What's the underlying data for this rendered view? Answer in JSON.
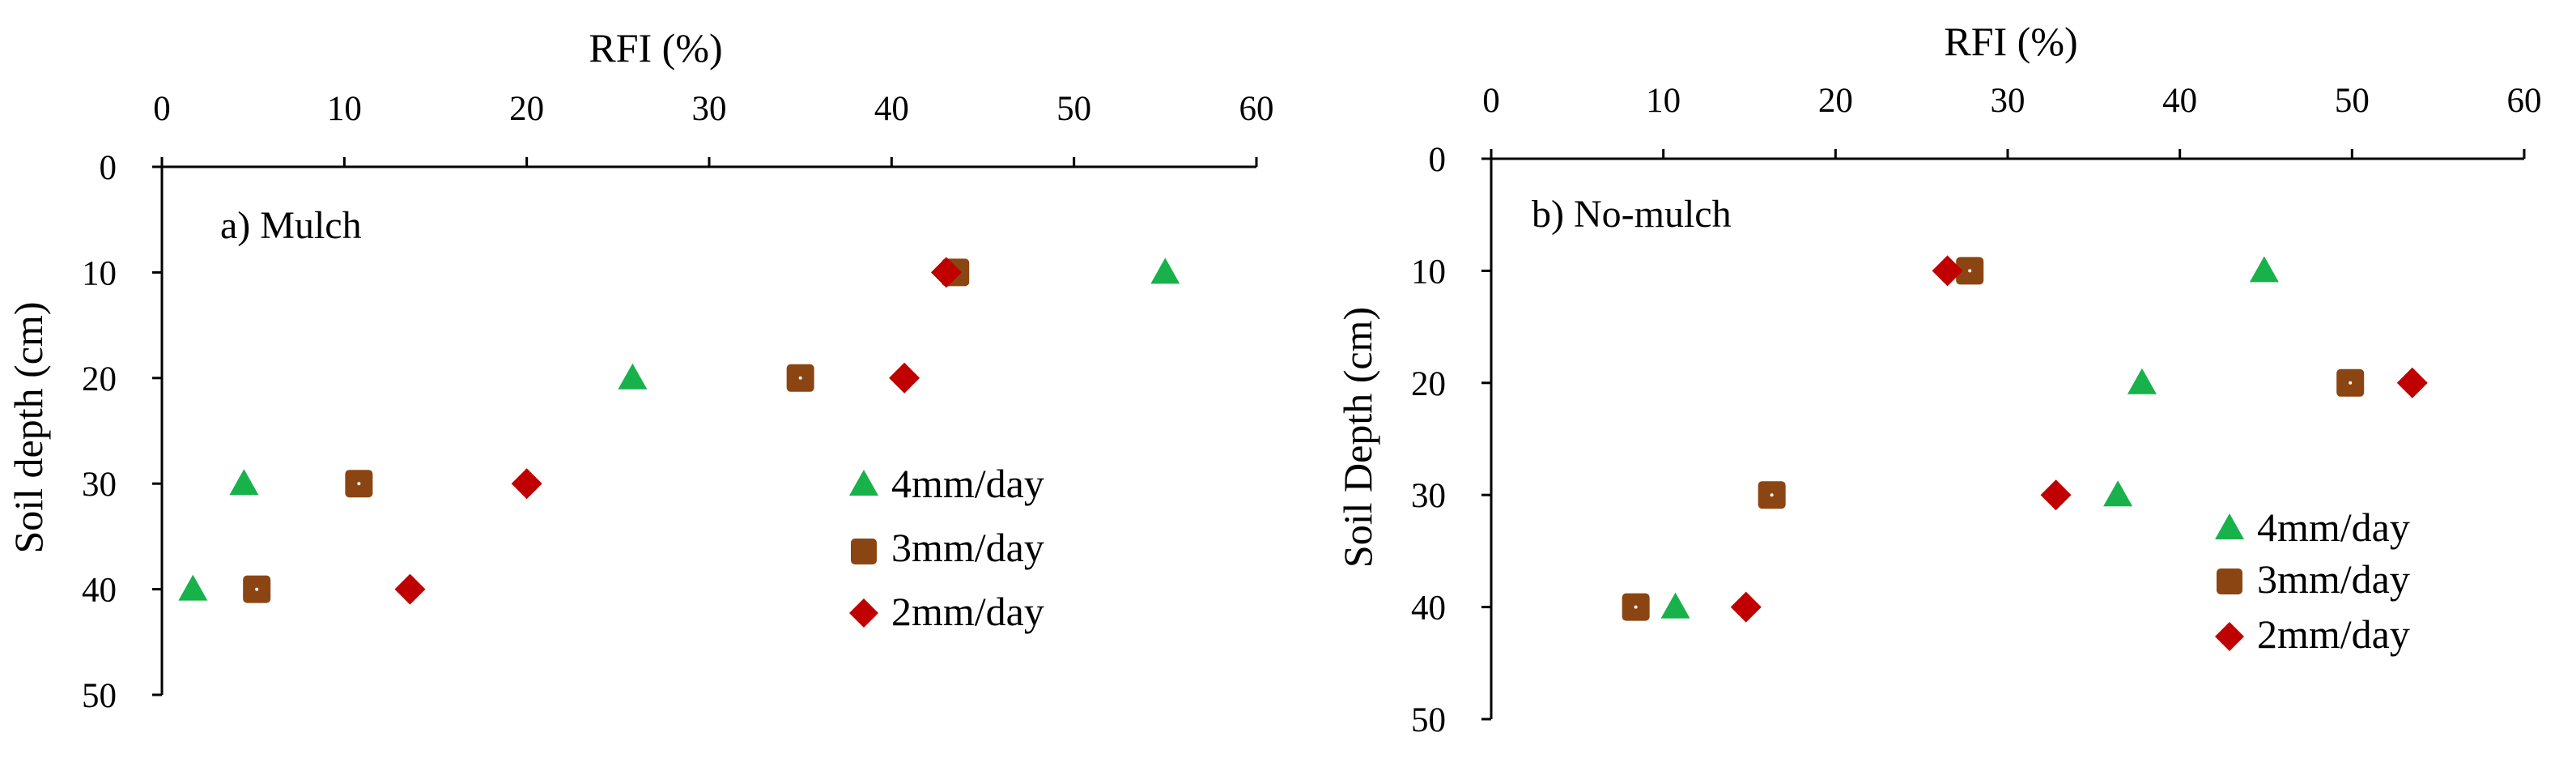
{
  "colors": {
    "4mm/day": "#17b24a",
    "3mm/day": "#8b4513",
    "2mm/day": "#c00000",
    "axis": "#000000"
  },
  "chart_data": [
    {
      "type": "scatter",
      "panel_label": "a) Mulch",
      "xlabel": "RFI (%)",
      "ylabel": "Soil depth (cm)",
      "xlim": [
        0,
        60
      ],
      "ylim": [
        0,
        50
      ],
      "x_axis_position": "top",
      "y_axis_inverted": true,
      "x_ticks": [
        "0",
        "10",
        "20",
        "30",
        "40",
        "50",
        "60"
      ],
      "y_ticks": [
        "0",
        "10",
        "20",
        "30",
        "40",
        "50"
      ],
      "grid": false,
      "legend_position": "bottom-right",
      "series": [
        {
          "name": "4mm/day",
          "marker": "triangle",
          "points": [
            [
              55,
              10
            ],
            [
              25.8,
              20
            ],
            [
              4.5,
              30
            ],
            [
              1.7,
              40
            ]
          ]
        },
        {
          "name": "3mm/day",
          "marker": "square",
          "points": [
            [
              43.5,
              10
            ],
            [
              35,
              20
            ],
            [
              10.8,
              30
            ],
            [
              5.2,
              40
            ]
          ]
        },
        {
          "name": "2mm/day",
          "marker": "diamond",
          "points": [
            [
              43,
              10
            ],
            [
              40.7,
              20
            ],
            [
              20,
              30
            ],
            [
              13.6,
              40
            ]
          ]
        }
      ]
    },
    {
      "type": "scatter",
      "panel_label": "b) No-mulch",
      "xlabel": "RFI (%)",
      "ylabel": "Soil Depth (cm)",
      "xlim": [
        0,
        60
      ],
      "ylim": [
        0,
        50
      ],
      "x_axis_position": "top",
      "y_axis_inverted": true,
      "x_ticks": [
        "0",
        "10",
        "20",
        "30",
        "40",
        "50",
        "60"
      ],
      "y_ticks": [
        "0",
        "10",
        "20",
        "30",
        "40",
        "50"
      ],
      "grid": false,
      "legend_position": "bottom-right",
      "series": [
        {
          "name": "4mm/day",
          "marker": "triangle",
          "points": [
            [
              44.9,
              10
            ],
            [
              37.8,
              20
            ],
            [
              36.4,
              30
            ],
            [
              10.7,
              40
            ]
          ]
        },
        {
          "name": "3mm/day",
          "marker": "square",
          "points": [
            [
              27.8,
              10
            ],
            [
              49.9,
              20
            ],
            [
              16.3,
              30
            ],
            [
              8.4,
              40
            ]
          ]
        },
        {
          "name": "2mm/day",
          "marker": "diamond",
          "points": [
            [
              26.5,
              10
            ],
            [
              53.5,
              20
            ],
            [
              32.8,
              30
            ],
            [
              14.8,
              40
            ]
          ]
        }
      ]
    }
  ]
}
